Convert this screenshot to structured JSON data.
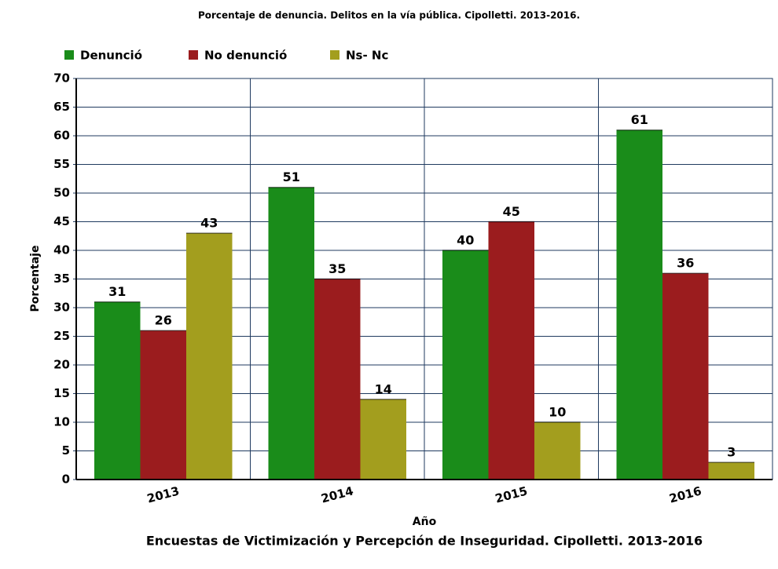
{
  "chart_data": {
    "type": "bar",
    "title": "Porcentaje de denuncia. Delitos en la vía pública. Cipolletti. 2013-2016.",
    "caption": "Encuestas de Victimización y Percepción de Inseguridad. Cipolletti. 2013-2016",
    "x_label": "Año",
    "y_label": "Porcentaje",
    "categories": [
      "2013",
      "2014",
      "2015",
      "2016"
    ],
    "series": [
      {
        "name": "Denunció",
        "color": "#1a8c1a",
        "values": [
          31,
          51,
          40,
          61
        ]
      },
      {
        "name": "No denunció",
        "color": "#9b1c1e",
        "values": [
          26,
          35,
          45,
          36
        ]
      },
      {
        "name": "Ns- Nc",
        "color": "#a39e1e",
        "values": [
          43,
          14,
          10,
          3
        ]
      }
    ],
    "ylim": [
      0,
      70
    ],
    "yticks": [
      0,
      5,
      10,
      15,
      20,
      25,
      30,
      35,
      40,
      45,
      50,
      55,
      60,
      65,
      70
    ],
    "grid": true,
    "legend": "top"
  }
}
